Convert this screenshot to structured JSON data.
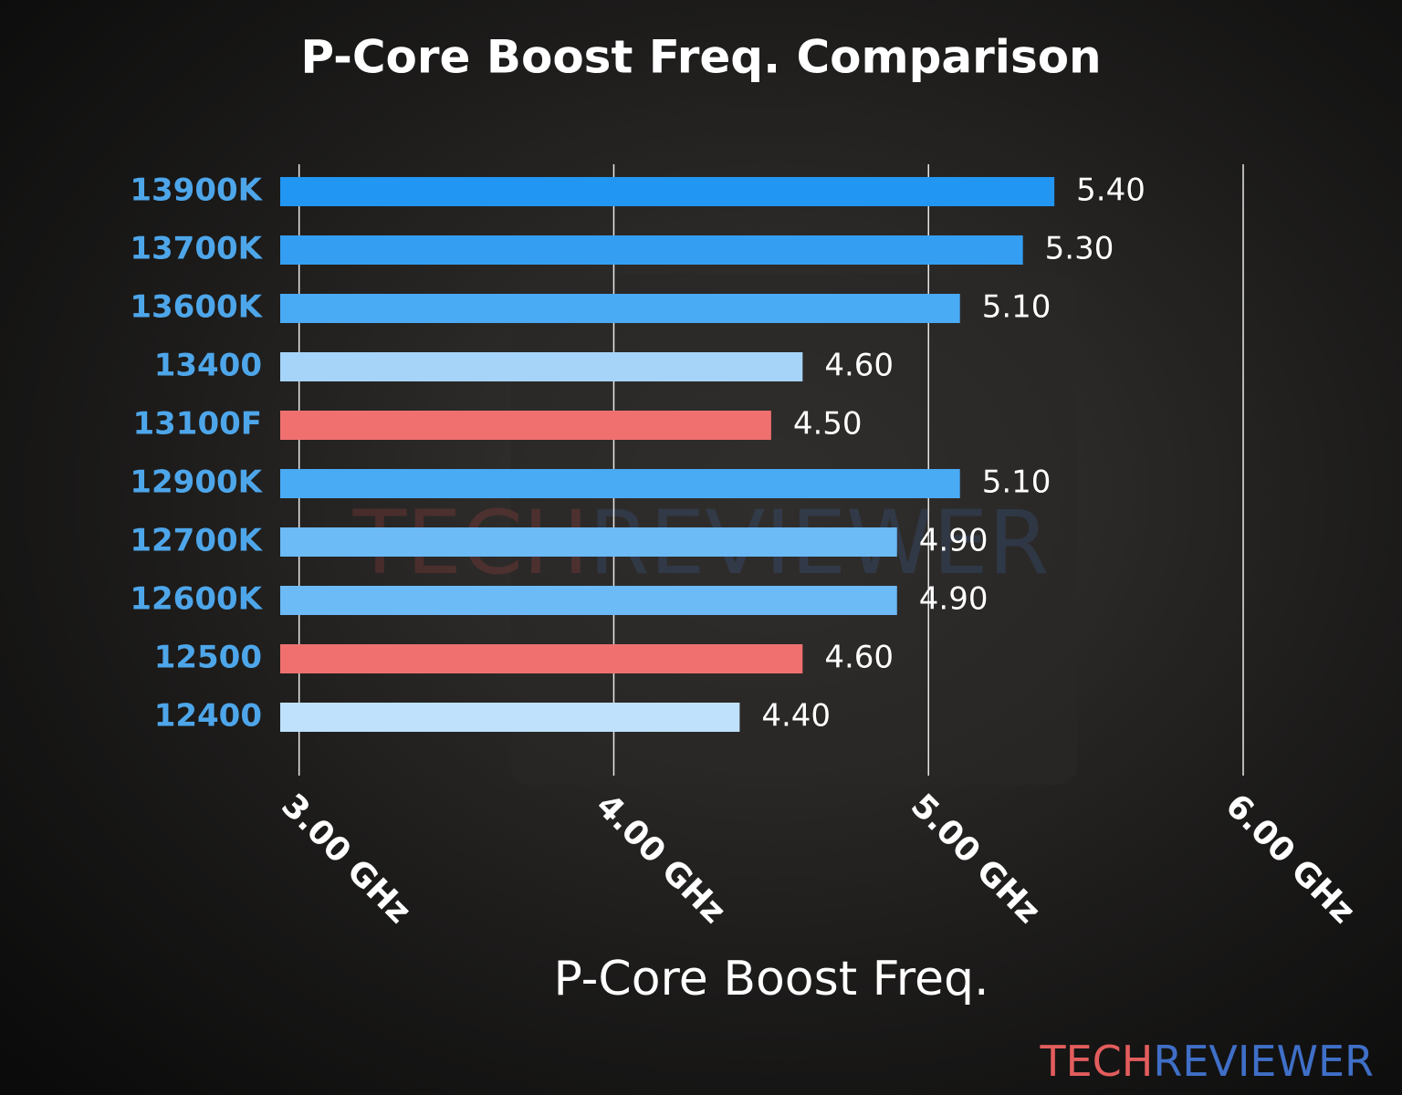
{
  "chart_data": {
    "type": "bar",
    "orientation": "horizontal",
    "title": "P-Core Boost Freq. Comparison",
    "x_label": "P-Core Boost Freq.",
    "categories": [
      "13900K",
      "13700K",
      "13600K",
      "13400",
      "13100F",
      "12900K",
      "12700K",
      "12600K",
      "12500",
      "12400"
    ],
    "values": [
      5.4,
      5.3,
      5.1,
      4.6,
      4.5,
      5.1,
      4.9,
      4.9,
      4.6,
      4.4
    ],
    "value_labels": [
      "5.40",
      "5.30",
      "5.10",
      "4.60",
      "4.50",
      "5.10",
      "4.90",
      "4.90",
      "4.60",
      "4.40"
    ],
    "colors": [
      "#2196f3",
      "#349ef2",
      "#4aabf5",
      "#a6d4f9",
      "#f07070",
      "#4aabf5",
      "#6cbaf6",
      "#6cbaf6",
      "#f07070",
      "#bfe1fb"
    ],
    "xlim": [
      2.94,
      6.0
    ],
    "xticks": [
      {
        "value": 3,
        "label": "3.00 GHz"
      },
      {
        "value": 4,
        "label": "4.00 GHz"
      },
      {
        "value": 5,
        "label": "5.00 GHz"
      },
      {
        "value": 6,
        "label": "6.00 GHz"
      }
    ],
    "grid": true,
    "watermark": [
      "TECH",
      "REVIEWER"
    ]
  }
}
